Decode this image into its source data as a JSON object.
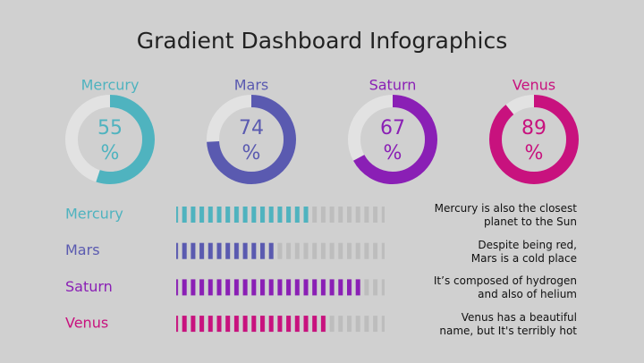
{
  "chart_data": [
    {
      "type": "donut",
      "title": "Gradient Dashboard Infographics",
      "categories": [
        "Mercury",
        "Mars",
        "Saturn",
        "Venus"
      ],
      "values": [
        55,
        74,
        67,
        89
      ],
      "value_labels": [
        "55\n%",
        "74\n%",
        "67\n%",
        "89\n%"
      ],
      "colors": [
        "#4fb3bf",
        "#5a5ab0",
        "#8a1fb5",
        "#c8127e"
      ],
      "ylim": [
        0,
        100
      ]
    },
    {
      "type": "bar",
      "categories": [
        "Mercury",
        "Mars",
        "Saturn",
        "Venus"
      ],
      "values": [
        64,
        48,
        89,
        73
      ],
      "colors": [
        "#4fb3bf",
        "#5a5ab0",
        "#8a1fb5",
        "#c8127e"
      ],
      "xlim": [
        0,
        100
      ],
      "annotations": [
        "Mercury is also the closest\nplanet to the Sun",
        "Despite being red,\nMars is a cold place",
        "It’s composed of hydrogen\nand also of helium",
        "Venus has a beautiful\nname, but It's terribly hot"
      ]
    }
  ]
}
